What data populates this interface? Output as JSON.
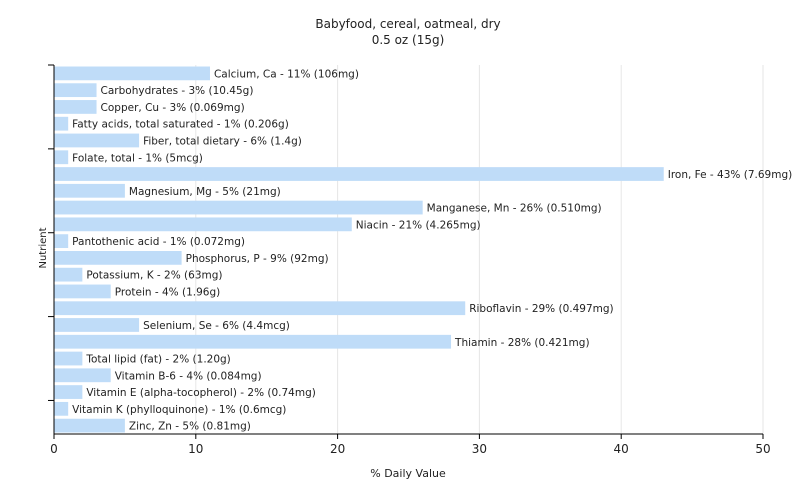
{
  "chart_data": {
    "type": "bar",
    "orientation": "horizontal",
    "title": "Babyfood, cereal, oatmeal, dry",
    "subtitle": "0.5 oz (15g)",
    "xlabel": "% Daily Value",
    "ylabel": "Nutrient",
    "xlim": [
      0,
      50
    ],
    "xticks": [
      0,
      10,
      20,
      30,
      40,
      50
    ],
    "grid": true,
    "bar_color": "#bfdcf8",
    "categories": [
      "Calcium, Ca",
      "Carbohydrates",
      "Copper, Cu",
      "Fatty acids, total saturated",
      "Fiber, total dietary",
      "Folate, total",
      "Iron, Fe",
      "Magnesium, Mg",
      "Manganese, Mn",
      "Niacin",
      "Pantothenic acid",
      "Phosphorus, P",
      "Potassium, K",
      "Protein",
      "Riboflavin",
      "Selenium, Se",
      "Thiamin",
      "Total lipid (fat)",
      "Vitamin B-6",
      "Vitamin E (alpha-tocopherol)",
      "Vitamin K (phylloquinone)",
      "Zinc, Zn"
    ],
    "values": [
      11,
      3,
      3,
      1,
      6,
      1,
      43,
      5,
      26,
      21,
      1,
      9,
      2,
      4,
      29,
      6,
      28,
      2,
      4,
      2,
      1,
      5
    ],
    "labels": [
      "Calcium, Ca - 11% (106mg)",
      "Carbohydrates - 3% (10.45g)",
      "Copper, Cu - 3% (0.069mg)",
      "Fatty acids, total saturated - 1% (0.206g)",
      "Fiber, total dietary - 6% (1.4g)",
      "Folate, total - 1% (5mcg)",
      "Iron, Fe - 43% (7.69mg)",
      "Magnesium, Mg - 5% (21mg)",
      "Manganese, Mn - 26% (0.510mg)",
      "Niacin - 21% (4.265mg)",
      "Pantothenic acid - 1% (0.072mg)",
      "Phosphorus, P - 9% (92mg)",
      "Potassium, K - 2% (63mg)",
      "Protein - 4% (1.96g)",
      "Riboflavin - 29% (0.497mg)",
      "Selenium, Se - 6% (4.4mcg)",
      "Thiamin - 28% (0.421mg)",
      "Total lipid (fat) - 2% (1.20g)",
      "Vitamin B-6 - 4% (0.084mg)",
      "Vitamin E (alpha-tocopherol) - 2% (0.74mg)",
      "Vitamin K (phylloquinone) - 1% (0.6mcg)",
      "Zinc, Zn - 5% (0.81mg)"
    ]
  }
}
